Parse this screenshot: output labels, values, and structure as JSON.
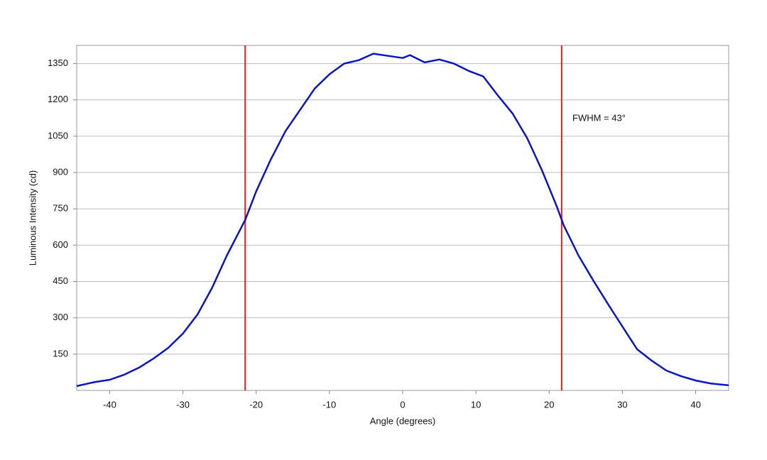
{
  "chart_data": {
    "type": "line",
    "xlabel": "Angle (degrees)",
    "ylabel": "Luminous Intensity (cd)",
    "x": [
      -44.5,
      -42,
      -40,
      -38,
      -36,
      -34,
      -32,
      -30,
      -28,
      -26,
      -24,
      -22,
      -21.5,
      -20,
      -18,
      -16,
      -14,
      -12,
      -10,
      -8,
      -6,
      -4,
      -2,
      0,
      1,
      3,
      5,
      7,
      9,
      11,
      13,
      15,
      17,
      19,
      21,
      22,
      24,
      26,
      28,
      30,
      32,
      34,
      36,
      38,
      40,
      42,
      44.5
    ],
    "series": [
      {
        "name": "Luminous Intensity",
        "color": "#0a14c8",
        "values": [
          18,
          35,
          44,
          65,
          94,
          132,
          176,
          235,
          314,
          425,
          557,
          675,
          704,
          822,
          954,
          1071,
          1159,
          1247,
          1306,
          1350,
          1364,
          1391,
          1382,
          1373,
          1385,
          1355,
          1367,
          1350,
          1320,
          1297,
          1218,
          1144,
          1042,
          910,
          763,
          681,
          557,
          455,
          358,
          264,
          170,
          123,
          82,
          59,
          41,
          29,
          21
        ]
      }
    ],
    "vlines": {
      "color": "#e0201a",
      "values": [
        -21.5,
        21.7
      ]
    },
    "annotation": "FWHM = 43°",
    "xlim": [
      -44.5,
      44.5
    ],
    "xticks": [
      -40,
      -30,
      -20,
      -10,
      0,
      10,
      20,
      30,
      40
    ],
    "ylim": [
      0,
      1425
    ],
    "yticks": [
      150,
      300,
      450,
      600,
      750,
      900,
      1050,
      1200,
      1350
    ],
    "grid": true
  }
}
